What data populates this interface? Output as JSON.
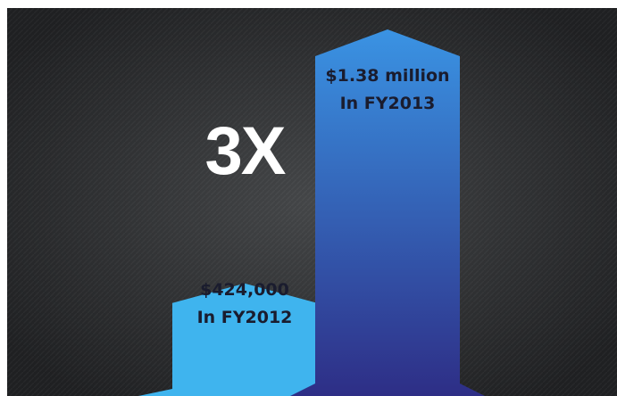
{
  "chart_data": {
    "type": "bar",
    "title": "",
    "xlabel": "",
    "ylabel": "",
    "categories": [
      "FY2012",
      "FY2013"
    ],
    "values": [
      424000,
      1380000
    ],
    "unit": "USD",
    "data_labels": [
      {
        "amount": "$424,000",
        "period": "In FY2012"
      },
      {
        "amount": "$1.38 million",
        "period": "In FY2013"
      }
    ],
    "annotation": "3X",
    "grid": false,
    "legend": "none"
  },
  "colors": {
    "background": "#2a2b2d",
    "bar_fy2012": "#3fb4ee",
    "bar_fy2013_top": "#3a93e3",
    "bar_fy2013_bottom": "#2e2e86",
    "label_text": "#1a1c2e",
    "annotation_text": "#ffffff"
  }
}
